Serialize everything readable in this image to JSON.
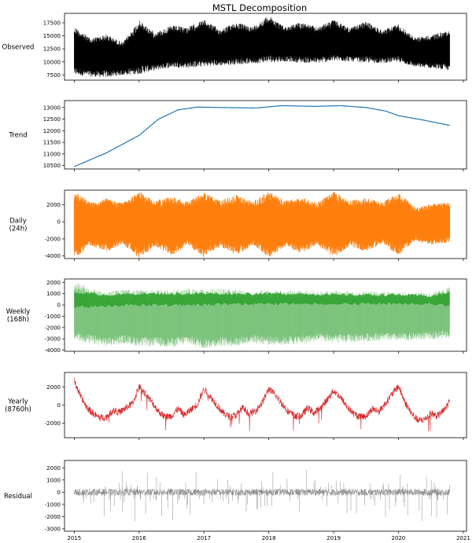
{
  "chart_data": {
    "type": "line",
    "title": "MSTL Decomposition",
    "x_ticks": [
      "2015",
      "2016",
      "2017",
      "2018",
      "2019",
      "2020",
      "2021"
    ],
    "x_range": [
      2014.85,
      2021.05
    ],
    "data_range": [
      2015.0,
      2020.79
    ],
    "panels": [
      {
        "name": "observed",
        "ylabel": [
          "Observed"
        ],
        "color": "#000000",
        "ylim": [
          6500,
          19300
        ],
        "yticks": [
          7500,
          10000,
          12500,
          15000,
          17500
        ],
        "envelope": {
          "t": [
            2015.0,
            2015.25,
            2015.5,
            2015.75,
            2016.0,
            2016.25,
            2016.5,
            2016.75,
            2017.0,
            2017.25,
            2017.5,
            2017.75,
            2018.0,
            2018.25,
            2018.5,
            2018.75,
            2019.0,
            2019.25,
            2019.5,
            2019.75,
            2020.0,
            2020.25,
            2020.5,
            2020.79
          ],
          "upper": [
            16500,
            14300,
            15000,
            13500,
            17600,
            15400,
            16700,
            16400,
            17800,
            16000,
            17300,
            16500,
            18600,
            16500,
            17400,
            16400,
            17800,
            16300,
            17500,
            15900,
            17000,
            14500,
            14900,
            15900
          ],
          "lower": [
            7800,
            7400,
            7300,
            7700,
            8000,
            8600,
            9200,
            9100,
            9400,
            9500,
            9800,
            9900,
            10200,
            10300,
            10100,
            10000,
            10400,
            10300,
            10100,
            10000,
            10200,
            9200,
            9000,
            8600
          ]
        }
      },
      {
        "name": "trend",
        "ylabel": [
          "Trend"
        ],
        "color": "#1f77b4",
        "ylim": [
          10350,
          13300
        ],
        "yticks": [
          10500,
          11000,
          11500,
          12000,
          12500,
          13000
        ],
        "line": {
          "t": [
            2015.0,
            2015.5,
            2016.0,
            2016.3,
            2016.6,
            2016.9,
            2017.3,
            2017.8,
            2018.2,
            2018.7,
            2019.1,
            2019.5,
            2019.8,
            2020.0,
            2020.4,
            2020.79
          ],
          "v": [
            10450,
            11050,
            11800,
            12500,
            12900,
            13020,
            13000,
            12980,
            13080,
            13050,
            13080,
            13000,
            12850,
            12650,
            12450,
            12230
          ]
        }
      },
      {
        "name": "daily",
        "ylabel": [
          "Daily",
          "(24h)"
        ],
        "color": "#ff7f0e",
        "ylim": [
          -4300,
          3700
        ],
        "yticks": [
          -4000,
          -2000,
          0,
          2000
        ],
        "envelope": {
          "t": [
            2015.0,
            2015.25,
            2015.5,
            2015.75,
            2016.0,
            2016.25,
            2016.5,
            2016.75,
            2017.0,
            2017.25,
            2017.5,
            2017.75,
            2018.0,
            2018.25,
            2018.5,
            2018.75,
            2019.0,
            2019.25,
            2019.5,
            2019.75,
            2020.0,
            2020.25,
            2020.5,
            2020.79
          ],
          "upper": [
            3200,
            2200,
            2500,
            2100,
            3300,
            2300,
            2800,
            2200,
            3200,
            2300,
            2900,
            2200,
            3300,
            2300,
            2600,
            2100,
            3300,
            2300,
            2600,
            2100,
            3200,
            1600,
            1900,
            2100
          ],
          "lower": [
            -4000,
            -2600,
            -3300,
            -2500,
            -4000,
            -2700,
            -3700,
            -2600,
            -3900,
            -2700,
            -3700,
            -2600,
            -3900,
            -2700,
            -3500,
            -2500,
            -3900,
            -2700,
            -3300,
            -2400,
            -3700,
            -2100,
            -2500,
            -2300
          ]
        }
      },
      {
        "name": "weekly",
        "ylabel": [
          "Weekly",
          "(168h)"
        ],
        "color": "#2ca02c",
        "ylim": [
          -4100,
          2300
        ],
        "yticks": [
          -4000,
          -3000,
          -2000,
          -1000,
          0,
          1000,
          2000
        ],
        "envelope": {
          "t": [
            2015.0,
            2015.25,
            2015.5,
            2015.75,
            2016.0,
            2016.25,
            2016.5,
            2016.75,
            2017.0,
            2017.25,
            2017.5,
            2017.75,
            2018.0,
            2018.25,
            2018.5,
            2018.75,
            2019.0,
            2019.25,
            2019.5,
            2019.75,
            2020.0,
            2020.25,
            2020.5,
            2020.79
          ],
          "upper": [
            1900,
            1300,
            1100,
            1200,
            1200,
            1200,
            1200,
            1300,
            1200,
            1300,
            1200,
            1100,
            1200,
            1100,
            1200,
            1100,
            1100,
            1100,
            1100,
            1000,
            1000,
            1000,
            900,
            1500
          ],
          "lower": [
            -3000,
            -3300,
            -3500,
            -3300,
            -3500,
            -3500,
            -3600,
            -3300,
            -3700,
            -3500,
            -3500,
            -3200,
            -3400,
            -3400,
            -3300,
            -3100,
            -3200,
            -3200,
            -3100,
            -3000,
            -3100,
            -3000,
            -2900,
            -2800
          ]
        },
        "band": {
          "t": [
            2015.0,
            2015.5,
            2016.0,
            2016.5,
            2017.0,
            2017.5,
            2018.0,
            2018.5,
            2019.0,
            2019.5,
            2020.0,
            2020.5,
            2020.79
          ],
          "upper": [
            1100,
            900,
            1000,
            1000,
            1000,
            1000,
            1000,
            1000,
            900,
            900,
            900,
            800,
            1100
          ],
          "lower": [
            -200,
            -100,
            0,
            0,
            0,
            100,
            100,
            100,
            100,
            100,
            100,
            100,
            -100
          ]
        }
      },
      {
        "name": "yearly",
        "ylabel": [
          "Yearly",
          "(8760h)"
        ],
        "color": "#d62728",
        "ylim": [
          -3600,
          3600
        ],
        "yticks": [
          -2000,
          0,
          2000
        ],
        "line": {
          "t": [
            2015.0,
            2015.05,
            2015.1,
            2015.2,
            2015.3,
            2015.4,
            2015.5,
            2015.6,
            2015.7,
            2015.8,
            2015.9,
            2016.0,
            2016.1,
            2016.2,
            2016.3,
            2016.4,
            2016.5,
            2016.6,
            2016.7,
            2016.8,
            2016.9,
            2017.0,
            2017.1,
            2017.2,
            2017.3,
            2017.4,
            2017.5,
            2017.6,
            2017.7,
            2017.8,
            2017.9,
            2018.0,
            2018.1,
            2018.2,
            2018.3,
            2018.4,
            2018.5,
            2018.6,
            2018.7,
            2018.8,
            2018.9,
            2019.0,
            2019.1,
            2019.2,
            2019.3,
            2019.4,
            2019.5,
            2019.6,
            2019.7,
            2019.8,
            2019.9,
            2020.0,
            2020.05,
            2020.1,
            2020.2,
            2020.3,
            2020.4,
            2020.5,
            2020.6,
            2020.7,
            2020.79
          ],
          "v": [
            2700,
            1800,
            900,
            -300,
            -1000,
            -1400,
            -1300,
            -600,
            -800,
            -300,
            200,
            2000,
            1200,
            300,
            -700,
            -1300,
            -1200,
            -400,
            -1100,
            -500,
            100,
            1800,
            900,
            0,
            -900,
            -1300,
            -1100,
            -300,
            -1000,
            -600,
            300,
            1800,
            1100,
            200,
            -700,
            -1200,
            -1200,
            -300,
            -900,
            -300,
            600,
            1600,
            900,
            -100,
            -900,
            -1300,
            -1200,
            -400,
            -700,
            200,
            1200,
            2100,
            1200,
            300,
            -900,
            -1700,
            -1600,
            -900,
            -1200,
            -600,
            400
          ]
        },
        "noise": 400
      },
      {
        "name": "residual",
        "ylabel": [
          "Residual"
        ],
        "color": "#7f7f7f",
        "ylim": [
          -3200,
          2600
        ],
        "yticks": [
          -3000,
          -2000,
          -1000,
          0,
          1000,
          2000
        ],
        "noise": 280,
        "spikes": 130,
        "spike_min": -2800,
        "spike_max": 2100
      }
    ]
  }
}
